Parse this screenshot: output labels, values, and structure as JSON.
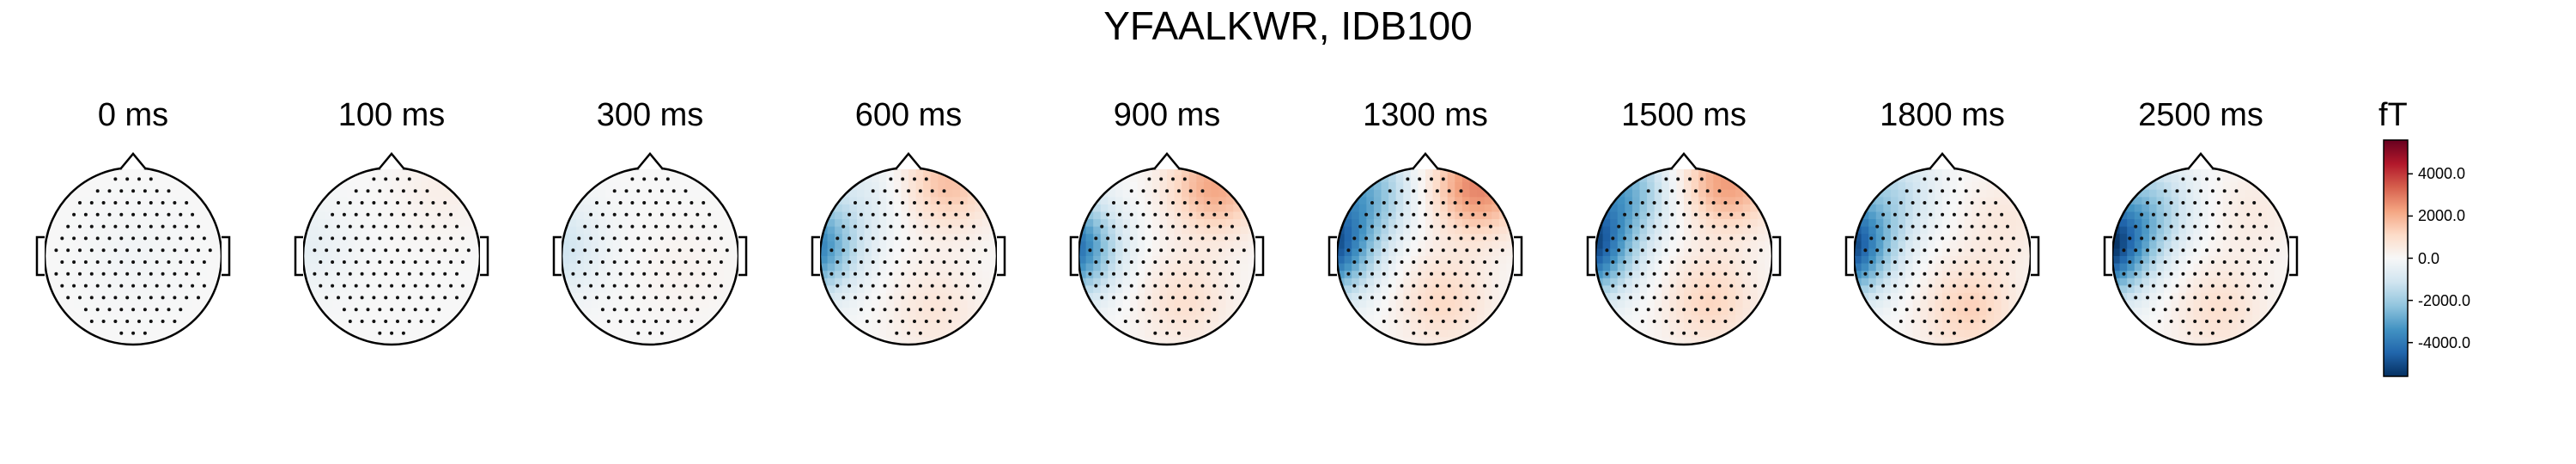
{
  "title": "YFAALKWR, IDB100",
  "chart_data": {
    "type": "heatmap",
    "title": "YFAALKWR, IDB100",
    "panels": [
      {
        "time_label": "0 ms",
        "field": [
          {
            "lon": 0,
            "lat": 0,
            "amp": -180
          }
        ]
      },
      {
        "time_label": "100 ms",
        "field": [
          {
            "lon": -1.0,
            "lat": 0.1,
            "amp": -500
          },
          {
            "lon": 0.6,
            "lat": 0.8,
            "amp": 350
          }
        ]
      },
      {
        "time_label": "300 ms",
        "field": [
          {
            "lon": -1.1,
            "lat": 0.1,
            "amp": -1200
          },
          {
            "lon": 0.4,
            "lat": -0.2,
            "amp": 200
          }
        ]
      },
      {
        "time_label": "600 ms",
        "field": [
          {
            "lon": -1.15,
            "lat": 0.1,
            "amp": -4000
          },
          {
            "lon": 0.45,
            "lat": 0.85,
            "amp": 1700
          },
          {
            "lon": -0.5,
            "lat": 0.7,
            "amp": -600
          },
          {
            "lon": 0.3,
            "lat": -0.6,
            "amp": 700
          }
        ]
      },
      {
        "time_label": "900 ms",
        "field": [
          {
            "lon": -1.15,
            "lat": 0.1,
            "amp": -4600
          },
          {
            "lon": 0.55,
            "lat": 0.8,
            "amp": 2200
          },
          {
            "lon": 0.2,
            "lat": -0.5,
            "amp": 900
          }
        ]
      },
      {
        "time_label": "1300 ms",
        "field": [
          {
            "lon": -1.15,
            "lat": 0.1,
            "amp": -5000
          },
          {
            "lon": -0.7,
            "lat": 0.75,
            "amp": -2500
          },
          {
            "lon": 0.6,
            "lat": 0.8,
            "amp": 2800
          },
          {
            "lon": 0.2,
            "lat": -0.5,
            "amp": 1100
          }
        ]
      },
      {
        "time_label": "1500 ms",
        "field": [
          {
            "lon": -1.15,
            "lat": 0.1,
            "amp": -5200
          },
          {
            "lon": -0.7,
            "lat": 0.75,
            "amp": -2600
          },
          {
            "lon": 0.5,
            "lat": 0.85,
            "amp": 2400
          },
          {
            "lon": 0.3,
            "lat": -0.5,
            "amp": 1200
          }
        ]
      },
      {
        "time_label": "1800 ms",
        "field": [
          {
            "lon": -1.15,
            "lat": 0.1,
            "amp": -5400
          },
          {
            "lon": -0.6,
            "lat": 0.7,
            "amp": -1400
          },
          {
            "lon": 0.3,
            "lat": -0.6,
            "amp": 1300
          },
          {
            "lon": 0.7,
            "lat": 0.4,
            "amp": 600
          }
        ]
      },
      {
        "time_label": "2500 ms",
        "field": [
          {
            "lon": -1.15,
            "lat": 0.1,
            "amp": -5600
          },
          {
            "lon": -0.6,
            "lat": 0.55,
            "amp": -1800
          },
          {
            "lon": 0.2,
            "lat": -0.6,
            "amp": 900
          },
          {
            "lon": 0.6,
            "lat": 0.5,
            "amp": 500
          }
        ]
      }
    ],
    "colorbar": {
      "unit": "fT",
      "vmin": -5600,
      "vmax": 5600,
      "ticks": [
        4000.0,
        2000.0,
        0.0,
        -2000.0,
        -4000.0
      ],
      "tick_labels": [
        "4000.0",
        "2000.0",
        "0.0",
        "-2000.0",
        "-4000.0"
      ],
      "colormap": "RdBu_r",
      "colors": [
        "#053061",
        "#2166ac",
        "#4393c3",
        "#92c5de",
        "#d1e5f0",
        "#f7f7f7",
        "#fddbc7",
        "#f4a582",
        "#d6604d",
        "#b2182b",
        "#67001f"
      ]
    }
  }
}
